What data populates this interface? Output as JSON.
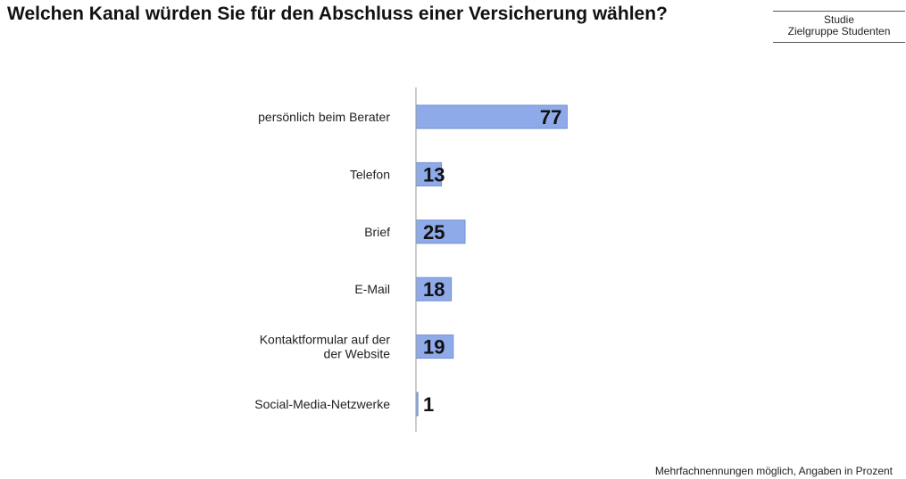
{
  "title": "Welchen Kanal würden Sie für den Abschluss einer Versicherung wählen?",
  "study_box": {
    "line1": "Studie",
    "line2": "Zielgruppe Studenten"
  },
  "footnote": "Mehrfachnennungen möglich, Angaben in Prozent",
  "colors": {
    "bar_fill": "#8faae8",
    "bar_stroke": "#6f8fd6",
    "axis": "#999999"
  },
  "chart_data": {
    "type": "bar",
    "orientation": "horizontal",
    "categories": [
      [
        "persönlich beim Berater"
      ],
      [
        "Telefon"
      ],
      [
        "Brief"
      ],
      [
        "E-Mail"
      ],
      [
        "Kontaktformular auf der",
        "der Website"
      ],
      [
        "Social-Media-Netzwerke"
      ]
    ],
    "values": [
      77,
      13,
      25,
      18,
      19,
      1
    ],
    "data_labels": [
      "77",
      "13",
      "25",
      "18",
      "19",
      "1"
    ],
    "xlim": [
      0,
      100
    ],
    "grid": false,
    "legend": "none"
  }
}
